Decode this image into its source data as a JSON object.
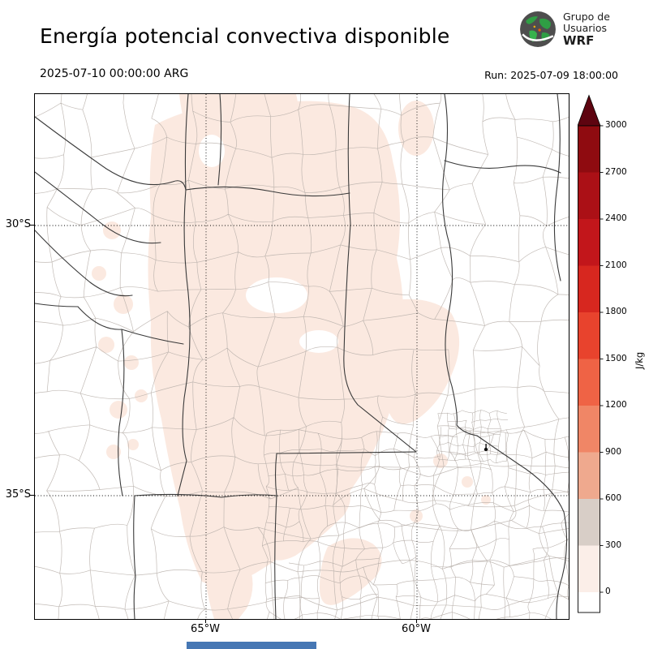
{
  "header": {
    "title": "Energía potencial convectiva disponible",
    "valid_time": "2025-07-10 00:00:00 ARG",
    "run_time": "Run: 2025-07-09 18:00:00",
    "logo": {
      "line1": "Grupo de",
      "line2": "Usuarios",
      "line3": "WRF"
    }
  },
  "map": {
    "lat_tick_labels": [
      "30°S",
      "35°S"
    ],
    "lon_tick_labels": [
      "65°W",
      "60°W"
    ],
    "fill_color": "#fbe9e0",
    "border_color": "#3a3a3a",
    "mesh_color": "#b7afa9"
  },
  "colorbar": {
    "unit": "J/kg",
    "min": 0,
    "max": 3000,
    "step": 300,
    "ticks": [
      "0",
      "300",
      "600",
      "900",
      "1200",
      "1500",
      "1800",
      "2100",
      "2400",
      "2700",
      "3000"
    ],
    "segment_colors_top_to_bottom": [
      "#8f0b10",
      "#ab1016",
      "#c2161b",
      "#d7271f",
      "#e8432d",
      "#ef6345",
      "#f08666",
      "#efa98e",
      "#d8cec7",
      "#fbeee8"
    ],
    "over_arrow_color": "#5e0410",
    "under_color": "#ffffff"
  },
  "footer": {
    "bar_color": "#4677b4"
  },
  "chart_data": {
    "type": "heatmap",
    "title": "Energía potencial convectiva disponible",
    "variable": "CAPE",
    "unit": "J/kg",
    "valid_time": "2025-07-10 00:00:00 ARG",
    "run": "2025-07-09 18:00:00",
    "lat_ticks": [
      "30°S",
      "35°S"
    ],
    "lon_ticks": [
      "65°W",
      "60°W"
    ],
    "scale_min": 0,
    "scale_max": 3000,
    "scale_step": 300,
    "legend_position": "right",
    "summary": "Pale pink shading (0–300 J/kg) covers central Argentina; rest of domain near 0"
  }
}
